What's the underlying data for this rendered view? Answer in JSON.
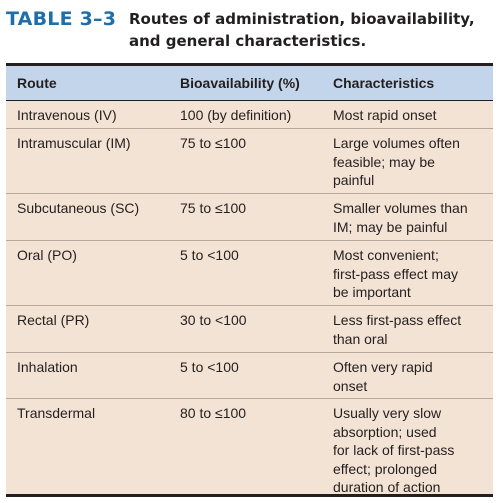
{
  "title": {
    "label": "TABLE 3–3",
    "caption_line1": "Routes of administration, bioavailability,",
    "caption_line2": "and general characteristics."
  },
  "table": {
    "headers": [
      "Route",
      "Bioavailability (%)",
      "Characteristics"
    ],
    "rows": [
      {
        "route": "Intravenous (IV)",
        "bioavailability": "100 (by definition)",
        "characteristics": [
          "Most rapid onset"
        ]
      },
      {
        "route": "Intramuscular (IM)",
        "bioavailability": "75 to ≤100",
        "characteristics": [
          "Large volumes often",
          "feasible; may be",
          "painful"
        ]
      },
      {
        "route": "Subcutaneous (SC)",
        "bioavailability": "75 to ≤100",
        "characteristics": [
          "Smaller volumes than",
          "IM; may be painful"
        ]
      },
      {
        "route": "Oral (PO)",
        "bioavailability": "5 to <100",
        "characteristics": [
          "Most convenient;",
          "first-pass effect may",
          "be important"
        ]
      },
      {
        "route": "Rectal (PR)",
        "bioavailability": "30 to <100",
        "characteristics": [
          "Less first-pass effect",
          "than oral"
        ]
      },
      {
        "route": "Inhalation",
        "bioavailability": "5 to <100",
        "characteristics": [
          "Often very rapid",
          "onset"
        ]
      },
      {
        "route": "Transdermal",
        "bioavailability": "80 to ≤100",
        "characteristics": [
          "Usually very slow",
          "absorption; used",
          "for lack of first-pass",
          "effect; prolonged",
          "duration of action"
        ]
      }
    ]
  }
}
